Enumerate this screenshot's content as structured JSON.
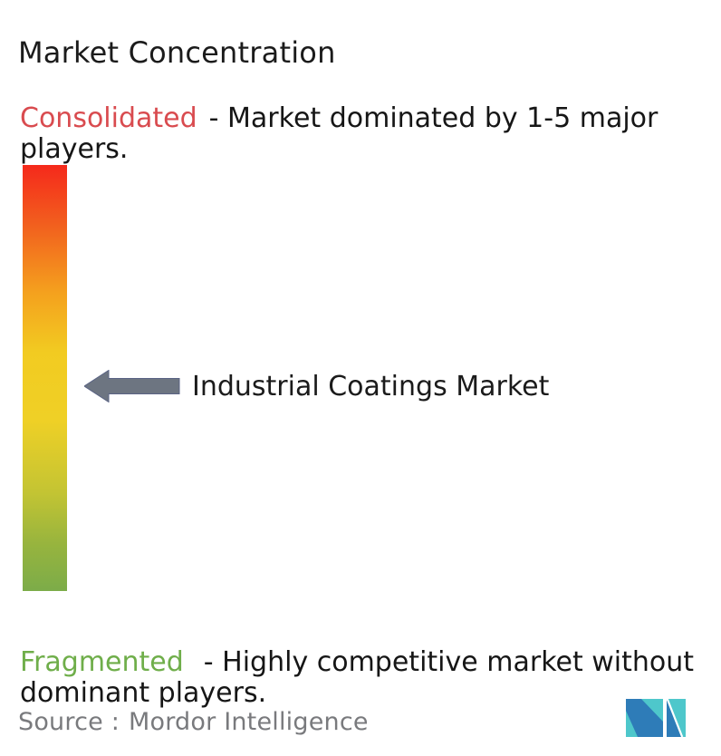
{
  "title": "Market Concentration",
  "consolidated": {
    "term": "Consolidated",
    "rest_line1": "- Market dominated by 1-5 major",
    "line2": "players.",
    "term_color": "#d94b4f"
  },
  "fragmented": {
    "term": "Fragmented",
    "rest_line1": "- Highly competitive market without",
    "line2": "dominant players.",
    "term_color": "#6fae4a"
  },
  "bar": {
    "gradient_stops": [
      [
        "#f5291b",
        "0%"
      ],
      [
        "#f25f1e",
        "14%"
      ],
      [
        "#f4a11e",
        "30%"
      ],
      [
        "#f2cb21",
        "44%"
      ],
      [
        "#efd026",
        "60%"
      ],
      [
        "#c3c433",
        "77%"
      ],
      [
        "#97b43e",
        "89%"
      ],
      [
        "#7cac49",
        "100%"
      ]
    ]
  },
  "marker": {
    "label": "Industrial Coatings Market",
    "arrow_color": "#6d7581",
    "arrow_outline": "#5a6384"
  },
  "source": {
    "label": "Source :",
    "name": "Mordor Intelligence"
  },
  "logo": {
    "teal": "#4ec7cb",
    "blue": "#2e7cb8"
  },
  "chart_data": {
    "type": "gauge",
    "title": "Market Concentration",
    "orientation": "vertical",
    "scale": [
      {
        "position": "top",
        "label": "Consolidated",
        "meaning": "Market dominated by 1-5 major players.",
        "color": "#f5291b"
      },
      {
        "position": "bottom",
        "label": "Fragmented",
        "meaning": "Highly competitive market without dominant players.",
        "color": "#7cac49"
      }
    ],
    "marker": {
      "label": "Industrial Coatings Market",
      "position_pct_from_top": 52
    },
    "legend_position": "none",
    "grid": false,
    "source": "Mordor Intelligence"
  }
}
